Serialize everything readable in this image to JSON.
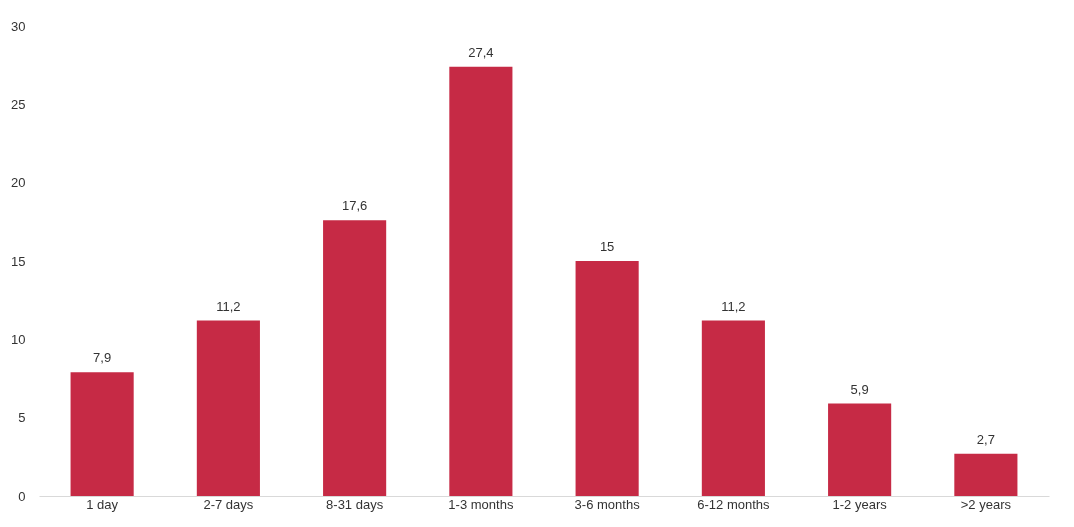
{
  "chart_data": {
    "type": "bar",
    "categories": [
      "1 day",
      "2-7 days",
      "8-31 days",
      "1-3 months",
      "3-6 months",
      "6-12 months",
      "1-2 years",
      ">2 years"
    ],
    "values": [
      7.9,
      11.2,
      17.6,
      27.4,
      15,
      11.2,
      5.9,
      2.7
    ],
    "value_labels": [
      "7,9",
      "11,2",
      "17,6",
      "27,4",
      "15",
      "11,2",
      "5,9",
      "2,7"
    ],
    "color": "#c62a45",
    "ylim": [
      0,
      30
    ],
    "yticks": [
      0,
      5,
      10,
      15,
      20,
      25,
      30
    ],
    "grid": false
  }
}
